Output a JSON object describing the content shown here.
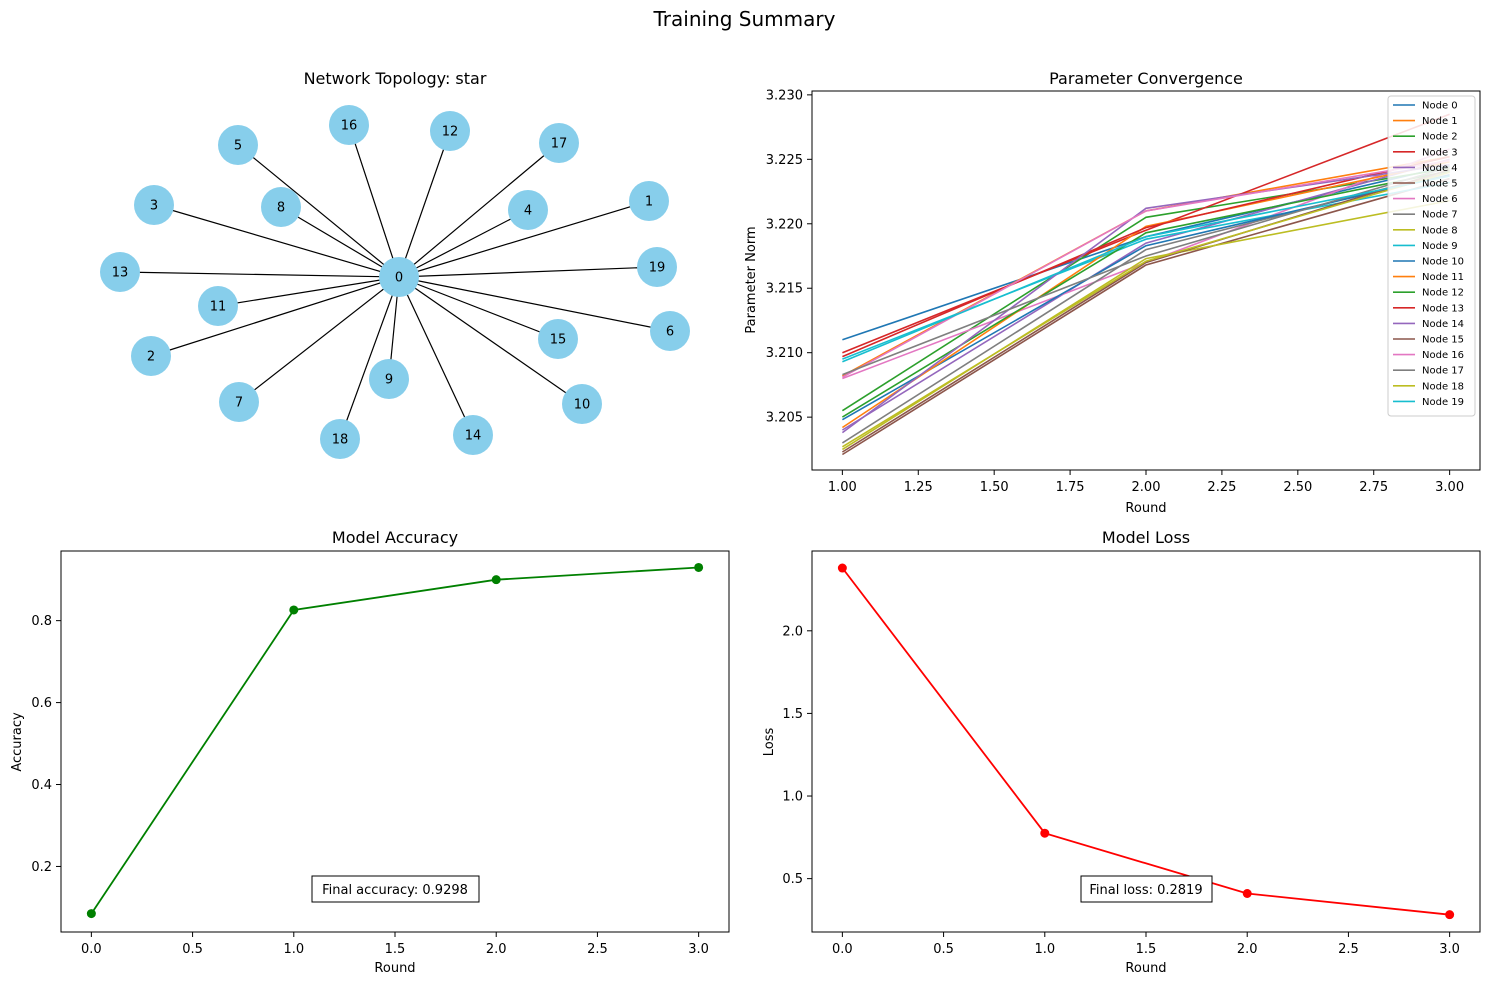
{
  "suptitle": "Training Summary",
  "chart_data": [
    {
      "type": "network",
      "title": "Network Topology: star",
      "node_color": "#87ceeb",
      "center_node": "0",
      "nodes": [
        {
          "id": "0"
        },
        {
          "id": "1"
        },
        {
          "id": "2"
        },
        {
          "id": "3"
        },
        {
          "id": "4"
        },
        {
          "id": "5"
        },
        {
          "id": "6"
        },
        {
          "id": "7"
        },
        {
          "id": "8"
        },
        {
          "id": "9"
        },
        {
          "id": "10"
        },
        {
          "id": "11"
        },
        {
          "id": "12"
        },
        {
          "id": "13"
        },
        {
          "id": "14"
        },
        {
          "id": "15"
        },
        {
          "id": "16"
        },
        {
          "id": "17"
        },
        {
          "id": "18"
        },
        {
          "id": "19"
        }
      ],
      "edges": [
        [
          "0",
          "1"
        ],
        [
          "0",
          "2"
        ],
        [
          "0",
          "3"
        ],
        [
          "0",
          "4"
        ],
        [
          "0",
          "5"
        ],
        [
          "0",
          "6"
        ],
        [
          "0",
          "7"
        ],
        [
          "0",
          "8"
        ],
        [
          "0",
          "9"
        ],
        [
          "0",
          "10"
        ],
        [
          "0",
          "11"
        ],
        [
          "0",
          "12"
        ],
        [
          "0",
          "13"
        ],
        [
          "0",
          "14"
        ],
        [
          "0",
          "15"
        ],
        [
          "0",
          "16"
        ],
        [
          "0",
          "17"
        ],
        [
          "0",
          "18"
        ],
        [
          "0",
          "19"
        ]
      ]
    },
    {
      "type": "line",
      "title": "Parameter Convergence",
      "xlabel": "Round",
      "ylabel": "Parameter Norm",
      "x": [
        1,
        2,
        3
      ],
      "xlim": [
        0.9,
        3.1
      ],
      "ylim": [
        3.2009,
        3.2303
      ],
      "xticks": [
        "1.00",
        "1.25",
        "1.50",
        "1.75",
        "2.00",
        "2.25",
        "2.50",
        "2.75",
        "3.00"
      ],
      "yticks": [
        "3.205",
        "3.210",
        "3.215",
        "3.220",
        "3.225",
        "3.230"
      ],
      "legend_position": "upper-right",
      "series": [
        {
          "name": "Node 0",
          "color": "#1f77b4",
          "values": [
            3.211,
            3.219,
            3.2245
          ]
        },
        {
          "name": "Node 1",
          "color": "#ff7f0e",
          "values": [
            3.2082,
            3.221,
            3.2252
          ]
        },
        {
          "name": "Node 2",
          "color": "#2ca02c",
          "values": [
            3.2055,
            3.2205,
            3.2243
          ]
        },
        {
          "name": "Node 3",
          "color": "#d62728",
          "values": [
            3.21,
            3.2195,
            3.2285
          ]
        },
        {
          "name": "Node 4",
          "color": "#9467bd",
          "values": [
            3.204,
            3.2185,
            3.225
          ]
        },
        {
          "name": "Node 5",
          "color": "#8c564b",
          "values": [
            3.2021,
            3.2168,
            3.2235
          ]
        },
        {
          "name": "Node 6",
          "color": "#e377c2",
          "values": [
            3.208,
            3.217,
            3.2258
          ]
        },
        {
          "name": "Node 7",
          "color": "#7f7f7f",
          "values": [
            3.203,
            3.218,
            3.224
          ]
        },
        {
          "name": "Node 8",
          "color": "#bcbd22",
          "values": [
            3.2025,
            3.2173,
            3.2218
          ]
        },
        {
          "name": "Node 9",
          "color": "#17becf",
          "values": [
            3.2095,
            3.2188,
            3.2232
          ]
        },
        {
          "name": "Node 10",
          "color": "#1f77b4",
          "values": [
            3.2048,
            3.2183,
            3.2238
          ]
        },
        {
          "name": "Node 11",
          "color": "#ff7f0e",
          "values": [
            3.2042,
            3.2198,
            3.2248
          ]
        },
        {
          "name": "Node 12",
          "color": "#2ca02c",
          "values": [
            3.205,
            3.2193,
            3.2241
          ]
        },
        {
          "name": "Node 13",
          "color": "#d62728",
          "values": [
            3.2097,
            3.2197,
            3.2252
          ]
        },
        {
          "name": "Node 14",
          "color": "#9467bd",
          "values": [
            3.2038,
            3.2212,
            3.2246
          ]
        },
        {
          "name": "Node 15",
          "color": "#8c564b",
          "values": [
            3.2023,
            3.217,
            3.2242
          ]
        },
        {
          "name": "Node 16",
          "color": "#e377c2",
          "values": [
            3.2081,
            3.221,
            3.2249
          ]
        },
        {
          "name": "Node 17",
          "color": "#7f7f7f",
          "values": [
            3.2083,
            3.2175,
            3.2244
          ]
        },
        {
          "name": "Node 18",
          "color": "#bcbd22",
          "values": [
            3.2027,
            3.2171,
            3.224
          ]
        },
        {
          "name": "Node 19",
          "color": "#17becf",
          "values": [
            3.2093,
            3.219,
            3.2237
          ]
        }
      ]
    },
    {
      "type": "line",
      "title": "Model Accuracy",
      "xlabel": "Round",
      "ylabel": "Accuracy",
      "x": [
        0,
        1,
        2,
        3
      ],
      "xlim": [
        -0.15,
        3.15
      ],
      "ylim": [
        0.04,
        0.97
      ],
      "xticks": [
        "0.0",
        "0.5",
        "1.0",
        "1.5",
        "2.0",
        "2.5",
        "3.0"
      ],
      "yticks": [
        "0.2",
        "0.4",
        "0.6",
        "0.8"
      ],
      "series": [
        {
          "color": "#008000",
          "marker": "circle",
          "values": [
            0.085,
            0.826,
            0.9,
            0.9298
          ]
        }
      ],
      "annotation": "Final accuracy: 0.9298"
    },
    {
      "type": "line",
      "title": "Model Loss",
      "xlabel": "Round",
      "ylabel": "Loss",
      "x": [
        0,
        1,
        2,
        3
      ],
      "xlim": [
        -0.15,
        3.15
      ],
      "ylim": [
        0.177,
        2.483
      ],
      "xticks": [
        "0.0",
        "0.5",
        "1.0",
        "1.5",
        "2.0",
        "2.5",
        "3.0"
      ],
      "yticks": [
        "0.5",
        "1.0",
        "1.5",
        "2.0"
      ],
      "series": [
        {
          "color": "#ff0000",
          "marker": "circle",
          "values": [
            2.38,
            0.775,
            0.41,
            0.2819
          ]
        }
      ],
      "annotation": "Final loss: 0.2819"
    }
  ]
}
